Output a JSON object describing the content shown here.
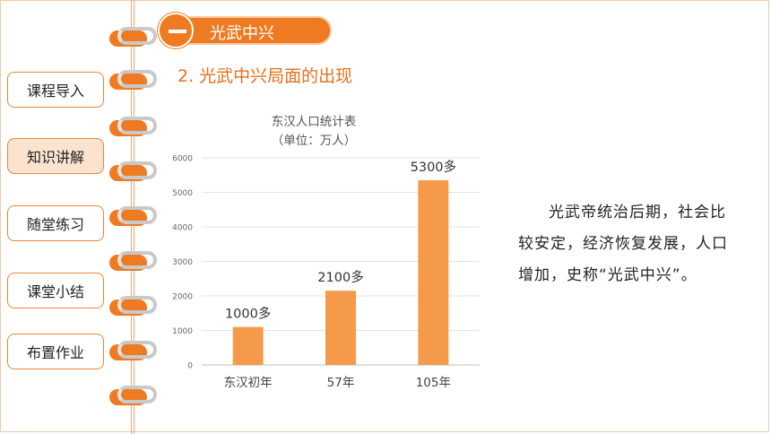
{
  "nav": {
    "items": [
      {
        "label": "课程导入"
      },
      {
        "label": "知识讲解"
      },
      {
        "label": "随堂练习"
      },
      {
        "label": "课堂小结"
      },
      {
        "label": "布置作业"
      }
    ],
    "active_index": 1
  },
  "section": {
    "number_symbol": "一",
    "title": "光武中兴"
  },
  "subtitle": "2. 光武中兴局面的出现",
  "chart_data": {
    "type": "bar",
    "title": "东汉人口统计表",
    "subtitle": "（单位：万人）",
    "categories": [
      "东汉初年",
      "57年",
      "105年"
    ],
    "values": [
      1100,
      2150,
      5350
    ],
    "data_labels": [
      "1000多",
      "2100多",
      "5300多"
    ],
    "ylim": [
      0,
      6000
    ],
    "yticks": [
      "0",
      "1000",
      "2000",
      "3000",
      "4000",
      "5000",
      "6000"
    ],
    "grid": true,
    "bar_color": "#f59a4b"
  },
  "body_text": "光武帝统治后期，社会比较安定，经济恢复发展，人口增加，史称“光武中兴”。",
  "colors": {
    "accent": "#ee7a22",
    "text": "#222222"
  }
}
